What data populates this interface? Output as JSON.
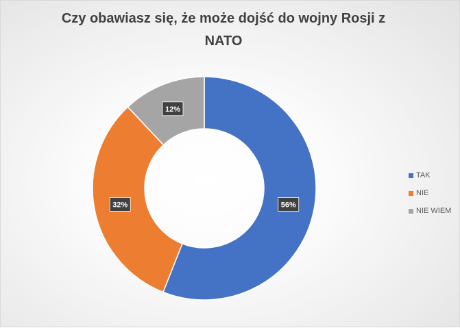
{
  "chart_data": {
    "type": "pie",
    "variant": "doughnut",
    "title": "Czy obawiasz się, że może dojść do wojny Rosji z NATO",
    "categories": [
      "TAK",
      "NIE",
      "NIE WIEM"
    ],
    "values": [
      56,
      32,
      12
    ],
    "data_labels": [
      "56%",
      "32%",
      "12%"
    ],
    "colors": [
      "#4472C4",
      "#ED7D31",
      "#A5A5A5"
    ],
    "legend_position": "right"
  }
}
